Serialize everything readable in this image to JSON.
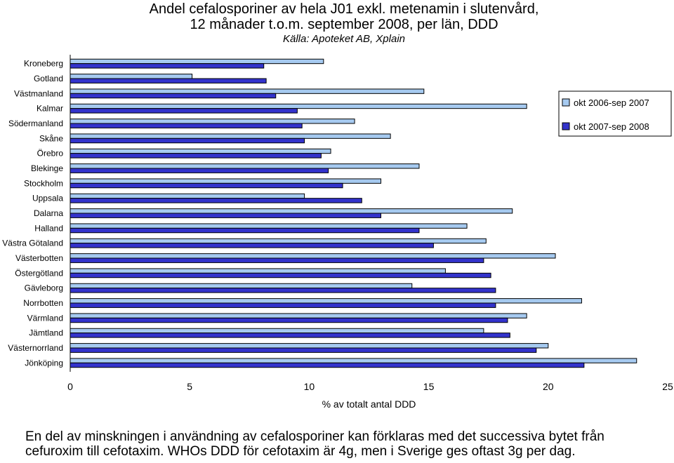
{
  "title": {
    "line1": "Andel cefalosporiner av hela J01 exkl. metenamin i slutenvård,",
    "line2": "12 månader t.o.m. september 2008, per län, DDD",
    "source": "Källa: Apoteket AB, Xplain"
  },
  "note": {
    "line1": "En del av minskningen i användning av cefalosporiner kan förklaras med det successiva bytet från",
    "line2": "cefuroxim till cefotaxim. WHOs DDD för cefotaxim är 4g, men i Sverige ges oftast 3g per dag."
  },
  "chart_data": {
    "type": "bar",
    "orientation": "horizontal",
    "categories": [
      "Kroneberg",
      "Gotland",
      "Västmanland",
      "Kalmar",
      "Södermanland",
      "Skåne",
      "Örebro",
      "Blekinge",
      "Stockholm",
      "Uppsala",
      "Dalarna",
      "Halland",
      "Västra Götaland",
      "Västerbotten",
      "Östergötland",
      "Gävleborg",
      "Norrbotten",
      "Värmland",
      "Jämtland",
      "Västernorrland",
      "Jönköping"
    ],
    "series": [
      {
        "name": "okt 2006-sep 2007",
        "color": "#a6caf0",
        "values": [
          10.6,
          5.1,
          14.8,
          19.1,
          11.9,
          13.4,
          10.9,
          14.6,
          13.0,
          9.8,
          18.5,
          16.6,
          17.4,
          20.3,
          15.7,
          14.3,
          21.4,
          19.1,
          17.3,
          20.0,
          23.7
        ]
      },
      {
        "name": "okt 2007-sep 2008",
        "color": "#3333cc",
        "values": [
          8.1,
          8.2,
          8.6,
          9.5,
          9.7,
          9.8,
          10.5,
          10.8,
          11.4,
          12.2,
          13.0,
          14.6,
          15.2,
          17.3,
          17.6,
          17.8,
          17.8,
          18.3,
          18.4,
          19.5,
          21.5
        ]
      }
    ],
    "xlabel": "% av totalt antal DDD",
    "xlim": [
      0,
      25
    ],
    "xticks": [
      0,
      5,
      10,
      15,
      20,
      25
    ],
    "grid": false,
    "legend_position": "right"
  }
}
